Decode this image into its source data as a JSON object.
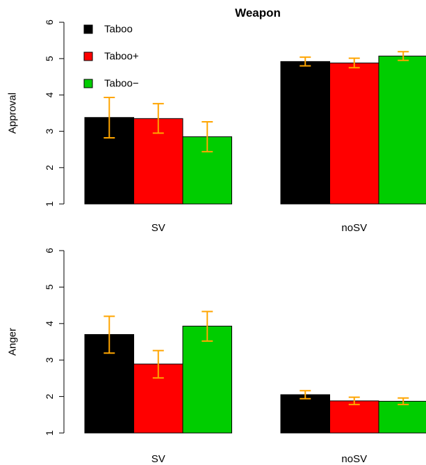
{
  "chart_data": [
    {
      "type": "bar",
      "title": "Weapon",
      "ylabel": "Approval",
      "xlabel": "",
      "categories": [
        "SV",
        "noSV"
      ],
      "ylim": [
        1,
        6
      ],
      "yticks": [
        1,
        2,
        3,
        4,
        5,
        6
      ],
      "legend": "top-left",
      "series": [
        {
          "name": "Taboo",
          "color": "#000000",
          "values": [
            3.38,
            4.92
          ],
          "err_low": [
            2.82,
            4.8
          ],
          "err_high": [
            3.93,
            5.04
          ]
        },
        {
          "name": "Taboo+",
          "color": "#ff0000",
          "values": [
            3.35,
            4.88
          ],
          "err_low": [
            2.95,
            4.75
          ],
          "err_high": [
            3.76,
            5.01
          ]
        },
        {
          "name": "Taboo−",
          "color": "#00cd00",
          "values": [
            2.85,
            5.07
          ],
          "err_low": [
            2.44,
            4.95
          ],
          "err_high": [
            3.26,
            5.19
          ]
        }
      ],
      "error_bar_color": "#ffa500"
    },
    {
      "type": "bar",
      "title": "",
      "ylabel": "Anger",
      "xlabel": "",
      "categories": [
        "SV",
        "noSV"
      ],
      "ylim": [
        1,
        6
      ],
      "yticks": [
        1,
        2,
        3,
        4,
        5,
        6
      ],
      "series": [
        {
          "name": "Taboo",
          "color": "#000000",
          "values": [
            3.7,
            2.05
          ],
          "err_low": [
            3.19,
            1.94
          ],
          "err_high": [
            4.2,
            2.16
          ]
        },
        {
          "name": "Taboo+",
          "color": "#ff0000",
          "values": [
            2.89,
            1.88
          ],
          "err_low": [
            2.51,
            1.78
          ],
          "err_high": [
            3.26,
            1.98
          ]
        },
        {
          "name": "Taboo−",
          "color": "#00cd00",
          "values": [
            3.93,
            1.87
          ],
          "err_low": [
            3.52,
            1.78
          ],
          "err_high": [
            4.33,
            1.96
          ]
        }
      ],
      "error_bar_color": "#ffa500"
    }
  ]
}
